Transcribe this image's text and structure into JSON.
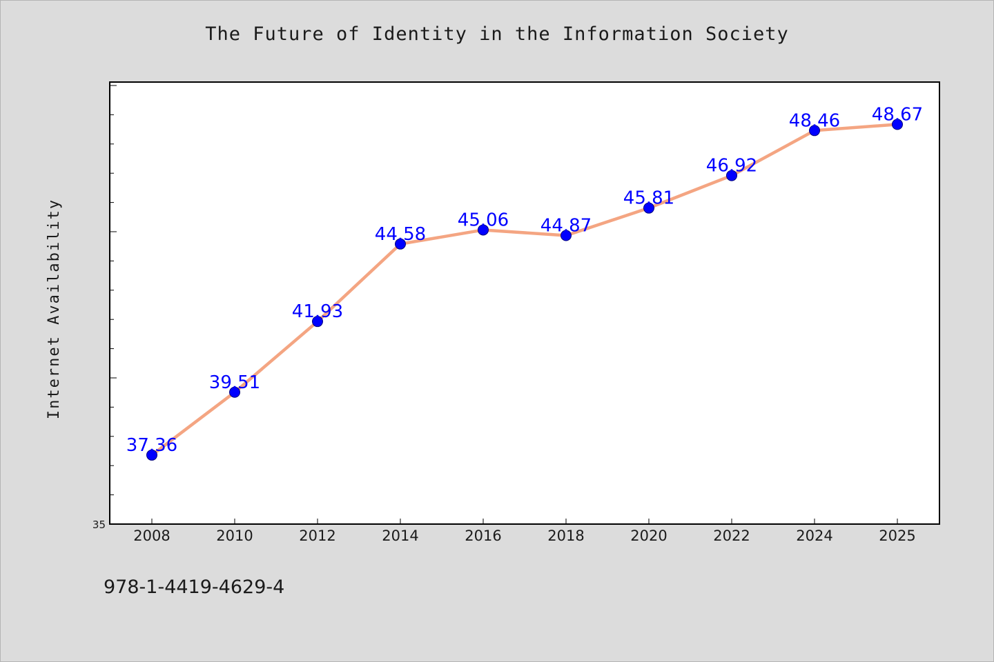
{
  "chart_data": {
    "type": "line",
    "title": "The Future of Identity in the Information Society",
    "ylabel": "Internet Availability",
    "xlabel": "",
    "categories": [
      "2008",
      "2010",
      "2012",
      "2014",
      "2016",
      "2018",
      "2020",
      "2022",
      "2024",
      "2025"
    ],
    "series": [
      {
        "values": [
          37.36,
          39.51,
          41.93,
          44.58,
          45.06,
          44.87,
          45.81,
          46.92,
          48.46,
          48.67
        ],
        "color": "#f4a582",
        "marker_color": "#0000ff"
      }
    ],
    "ylim": [
      35,
      50
    ],
    "y_tick_labels": [
      "35"
    ],
    "data_label_color": "#0000ff",
    "grid": false,
    "legend": "none"
  },
  "footer": {
    "isbn": "978-1-4419-4629-4"
  }
}
